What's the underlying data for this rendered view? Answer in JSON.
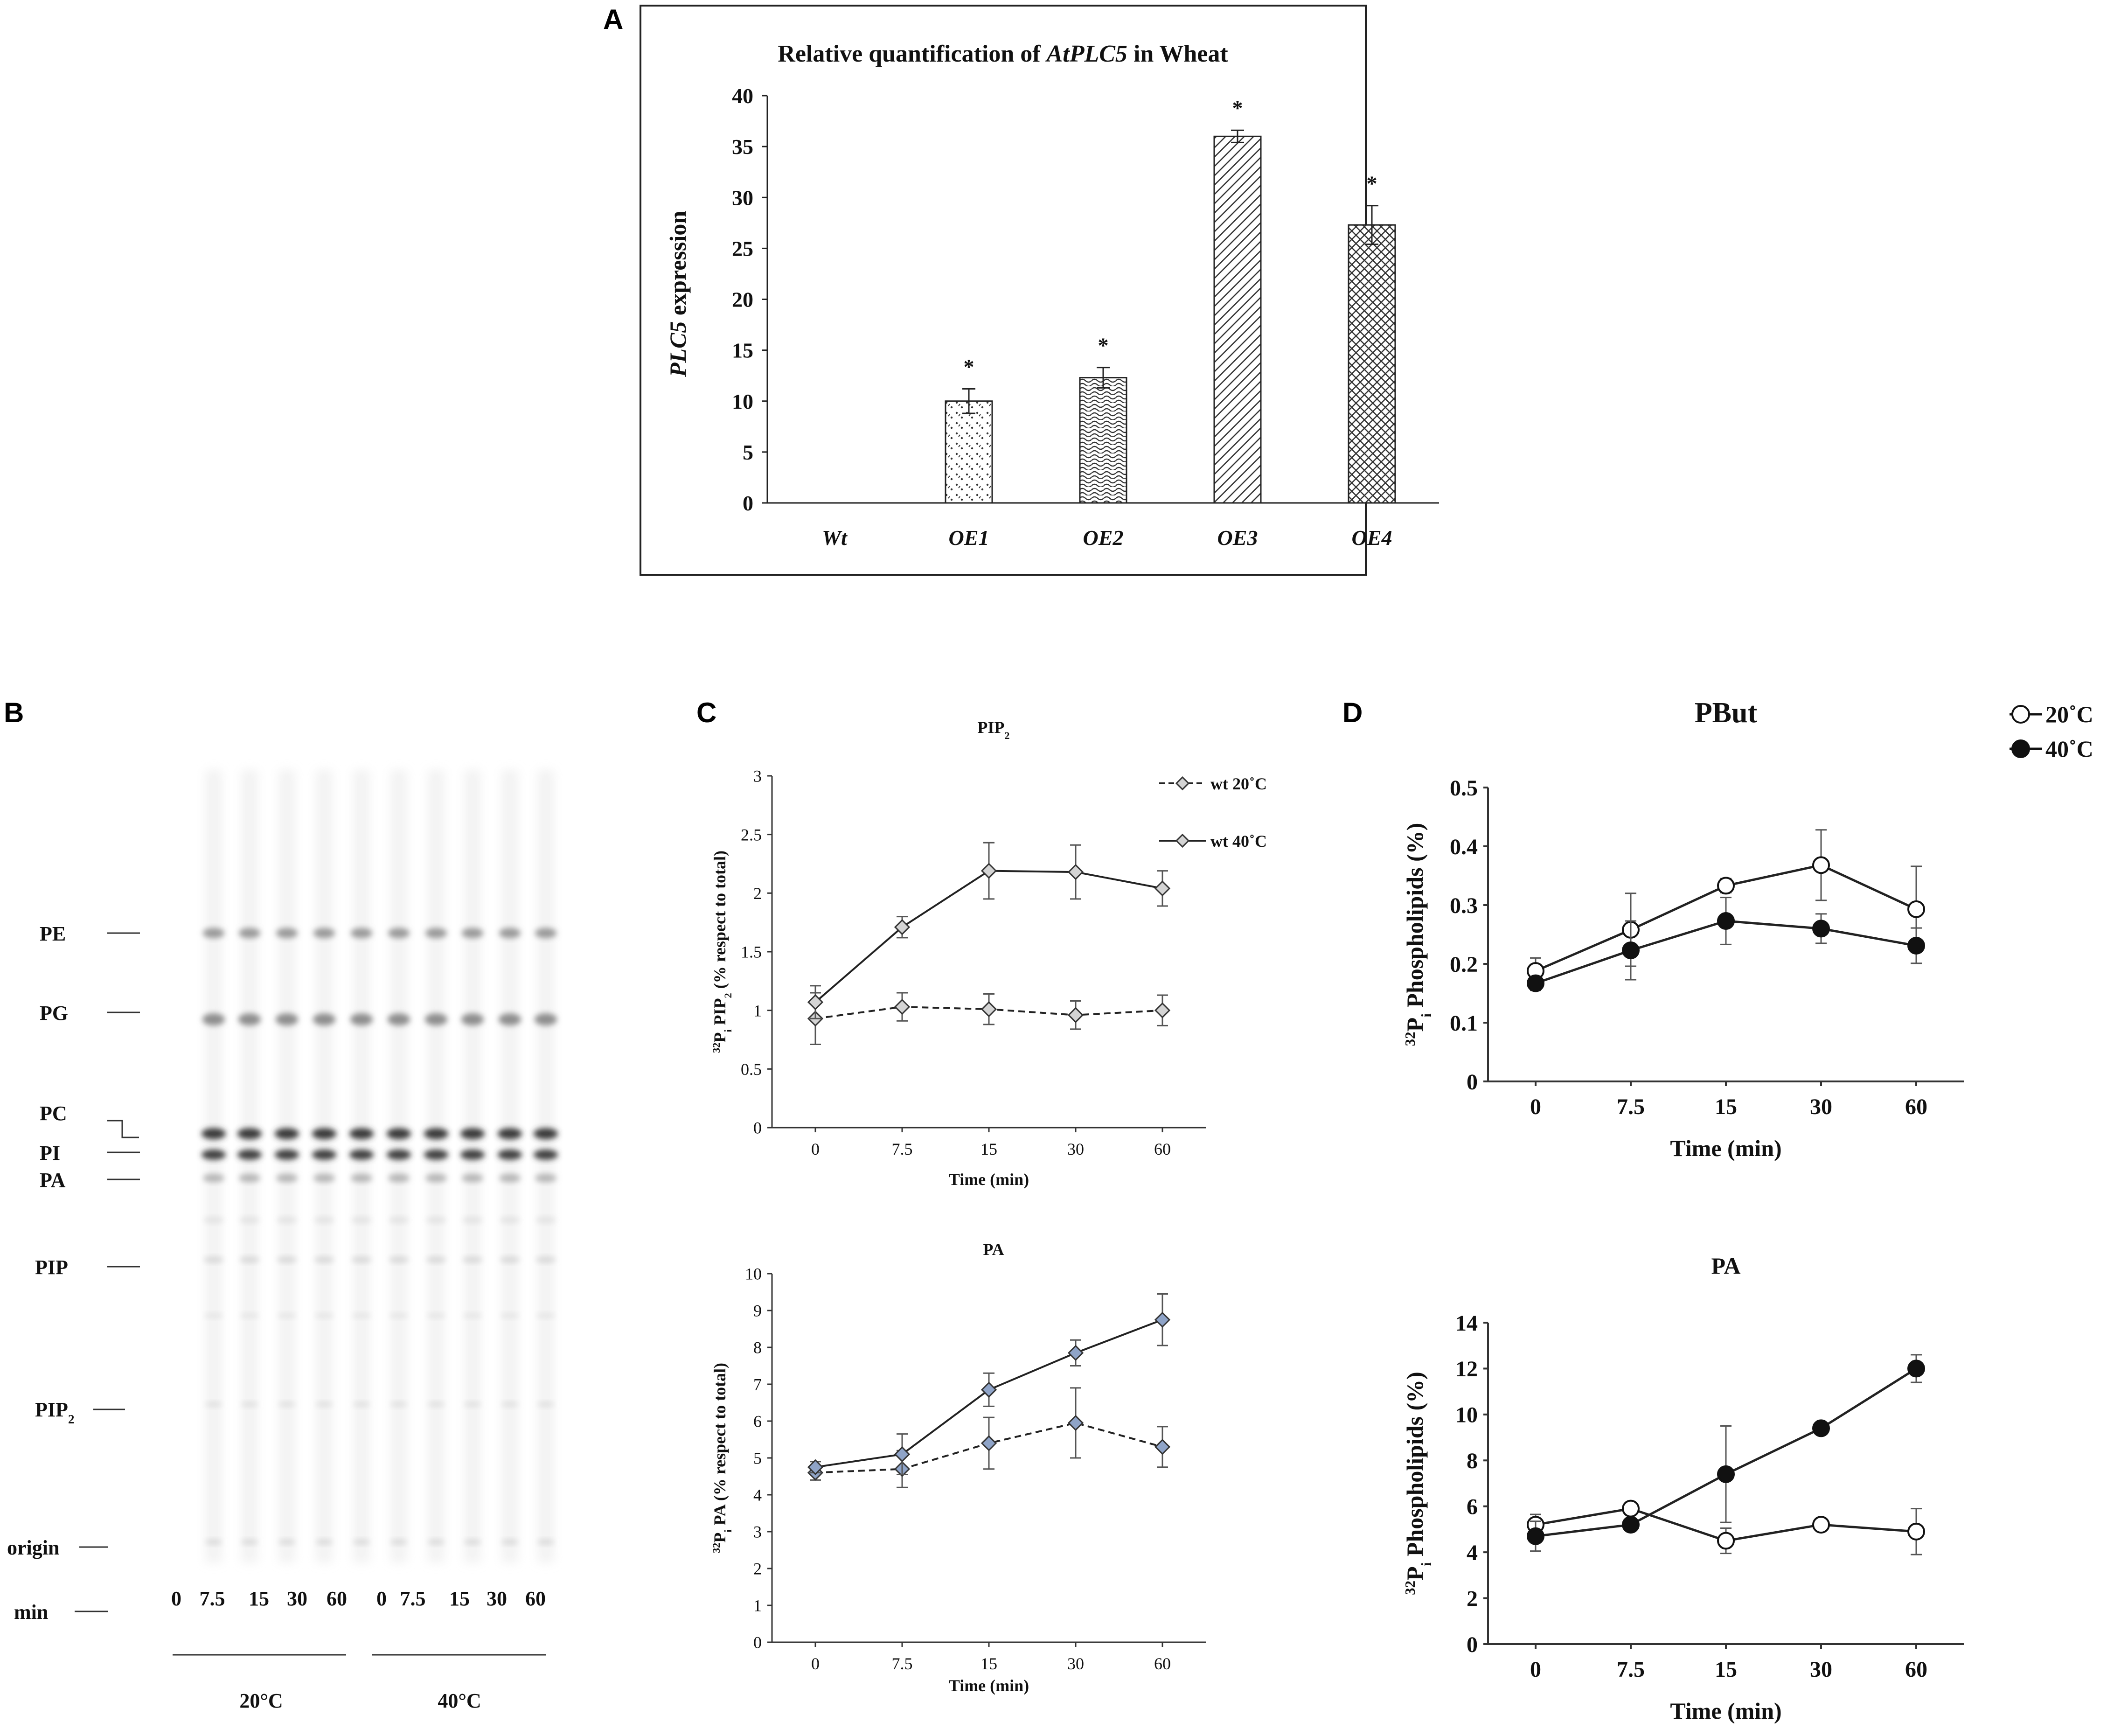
{
  "panels": {
    "A": "A",
    "B": "B",
    "C": "C",
    "D": "D"
  },
  "chart_data": [
    {
      "id": "A",
      "type": "bar",
      "title_prefix": "Relative quantification of ",
      "title_gene": "AtPLC5",
      "title_suffix": " in Wheat",
      "ylabel_gene": "PLC5",
      "ylabel_rest": " expression",
      "xlabel": "",
      "ylim": [
        0,
        40
      ],
      "yticks": [
        0,
        5,
        10,
        15,
        20,
        25,
        30,
        35,
        40
      ],
      "categories": [
        "Wt",
        "OE1",
        "OE2",
        "OE3",
        "OE4"
      ],
      "values": [
        0,
        10,
        12.3,
        36,
        27.3
      ],
      "errors": [
        0,
        1.2,
        1.0,
        0.6,
        1.9
      ],
      "significance": [
        "",
        "*",
        "*",
        "*",
        "*"
      ],
      "colors": {
        "bar_fill": "#ffffff",
        "bar_stroke": "#222222",
        "hatch": "#444444"
      }
    },
    {
      "id": "C-PIP2",
      "type": "line",
      "title": "PIP2",
      "ylabel": "32Pi PIP2 (% respect to total)",
      "xlabel": "Time (min)",
      "categories": [
        "0",
        "7.5",
        "15",
        "30",
        "60"
      ],
      "ylim": [
        0,
        3
      ],
      "yticks": [
        "0",
        "0.5",
        "1",
        "1.5",
        "2",
        "2.5",
        "3"
      ],
      "legend": {
        "wt20": "wt 20˚C",
        "wt40": "wt 40˚C"
      },
      "series": [
        {
          "name": "wt 20˚C",
          "style": "dashed",
          "values": [
            0.93,
            1.03,
            1.01,
            0.96,
            1.0
          ],
          "errors": [
            0.22,
            0.12,
            0.13,
            0.12,
            0.13
          ]
        },
        {
          "name": "wt 40˚C",
          "style": "solid",
          "values": [
            1.07,
            1.71,
            2.19,
            2.18,
            2.04
          ],
          "errors": [
            0.14,
            0.09,
            0.24,
            0.23,
            0.15
          ]
        }
      ],
      "colors": {
        "marker": "#d4d4d4"
      }
    },
    {
      "id": "C-PA",
      "type": "line",
      "title": "PA",
      "ylabel": "32Pi PA (% respect to total)",
      "xlabel": "Time (min)",
      "categories": [
        "0",
        "7.5",
        "15",
        "30",
        "60"
      ],
      "ylim": [
        0,
        10
      ],
      "yticks": [
        "0",
        "1",
        "2",
        "3",
        "4",
        "5",
        "6",
        "7",
        "8",
        "9",
        "10"
      ],
      "series": [
        {
          "name": "wt 20˚C",
          "style": "dashed",
          "values": [
            4.6,
            4.7,
            5.4,
            5.95,
            5.3
          ],
          "errors": [
            0.2,
            0.5,
            0.7,
            0.95,
            0.55
          ]
        },
        {
          "name": "wt 40˚C",
          "style": "solid",
          "values": [
            4.75,
            5.1,
            6.85,
            7.85,
            8.75
          ],
          "errors": [
            0.15,
            0.55,
            0.45,
            0.35,
            0.7
          ]
        }
      ],
      "colors": {
        "marker": "#8fa4c8"
      }
    },
    {
      "id": "D-PBut",
      "type": "line",
      "title": "PBut",
      "ylabel": "32Pi Phospholipids (%)",
      "xlabel": "Time (min)",
      "categories": [
        "0",
        "7.5",
        "15",
        "30",
        "60"
      ],
      "ylim": [
        0,
        0.5
      ],
      "yticks": [
        "0",
        "0.1",
        "0.2",
        "0.3",
        "0.4",
        "0.5"
      ],
      "legend": {
        "c20": "20˚C",
        "c40": "40˚C"
      },
      "series": [
        {
          "name": "20˚C",
          "marker": "open",
          "values": [
            0.188,
            0.258,
            0.333,
            0.368,
            0.293
          ],
          "errors": [
            0.022,
            0.062,
            0.012,
            0.06,
            0.073
          ]
        },
        {
          "name": "40˚C",
          "marker": "filled",
          "values": [
            0.167,
            0.223,
            0.273,
            0.26,
            0.231
          ],
          "errors": [
            0.012,
            0.05,
            0.04,
            0.025,
            0.03
          ]
        }
      ]
    },
    {
      "id": "D-PA",
      "type": "line",
      "title": "PA",
      "ylabel": "32Pi Phospholipids (%)",
      "xlabel": "Time (min)",
      "categories": [
        "0",
        "7.5",
        "15",
        "30",
        "60"
      ],
      "ylim": [
        0,
        14
      ],
      "yticks": [
        "0",
        "2",
        "4",
        "6",
        "8",
        "10",
        "12",
        "14"
      ],
      "series": [
        {
          "name": "20˚C",
          "marker": "open",
          "values": [
            5.2,
            5.9,
            4.5,
            5.2,
            4.9
          ],
          "errors": [
            0.45,
            0.2,
            0.55,
            0.15,
            1.0
          ]
        },
        {
          "name": "40˚C",
          "marker": "filled",
          "values": [
            4.7,
            5.2,
            7.4,
            9.4,
            12.0
          ],
          "errors": [
            0.65,
            0.25,
            2.1,
            0.1,
            0.6
          ]
        }
      ]
    }
  ],
  "gel": {
    "band_labels": [
      "PE",
      "PG",
      "PC",
      "PI",
      "PA",
      "PIP",
      "PIP2",
      "origin",
      "min"
    ],
    "times": [
      "0",
      "7.5",
      "15",
      "30",
      "60",
      "0",
      "7.5",
      "15",
      "30",
      "60"
    ],
    "groups": [
      "20°C",
      "40°C"
    ]
  }
}
